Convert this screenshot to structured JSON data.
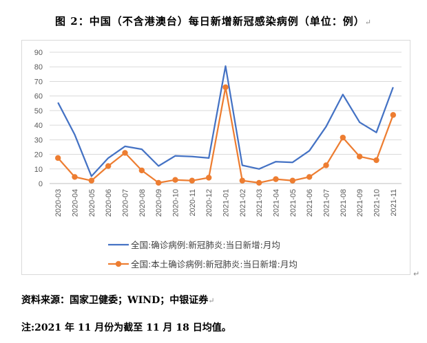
{
  "title": "图 2：中国（不含港澳台）每日新增新冠感染病例（单位：例）",
  "source": "资料来源：国家卫健委；WIND；中银证券",
  "note": "注:2021 年 11 月份为截至 11 月 18 日均值。",
  "chart_data": {
    "type": "line",
    "categories": [
      "2020-03",
      "2020-04",
      "2020-05",
      "2020-06",
      "2020-07",
      "2020-08",
      "2020-09",
      "2020-10",
      "2020-11",
      "2020-12",
      "2021-01",
      "2021-02",
      "2021-03",
      "2021-04",
      "2021-05",
      "2021-06",
      "2021-07",
      "2021-08",
      "2021-09",
      "2021-10",
      "2021-11"
    ],
    "ylim": [
      0,
      90
    ],
    "yticks": [
      0,
      10,
      20,
      30,
      40,
      50,
      60,
      70,
      80,
      90
    ],
    "grid": true,
    "legend_position": "bottom",
    "series": [
      {
        "name": "全国:确诊病例:新冠肺炎:当日新增:月均",
        "color": "#4472C4",
        "marker": "none",
        "values": [
          55.5,
          33.5,
          5,
          17.5,
          25.5,
          23.5,
          12,
          19,
          18.5,
          17.5,
          80.5,
          12.5,
          10,
          15,
          14.5,
          22.5,
          39,
          61,
          42,
          35,
          66
        ]
      },
      {
        "name": "全国:本土确诊病例:新冠肺炎:当日新增:月均",
        "color": "#ED7D31",
        "marker": "circle",
        "values": [
          17.5,
          4.5,
          2,
          12,
          21,
          9,
          0.5,
          2.5,
          2,
          4,
          66,
          2,
          0.5,
          3,
          2,
          4.5,
          12.5,
          31.5,
          18.5,
          16,
          47
        ]
      }
    ]
  }
}
